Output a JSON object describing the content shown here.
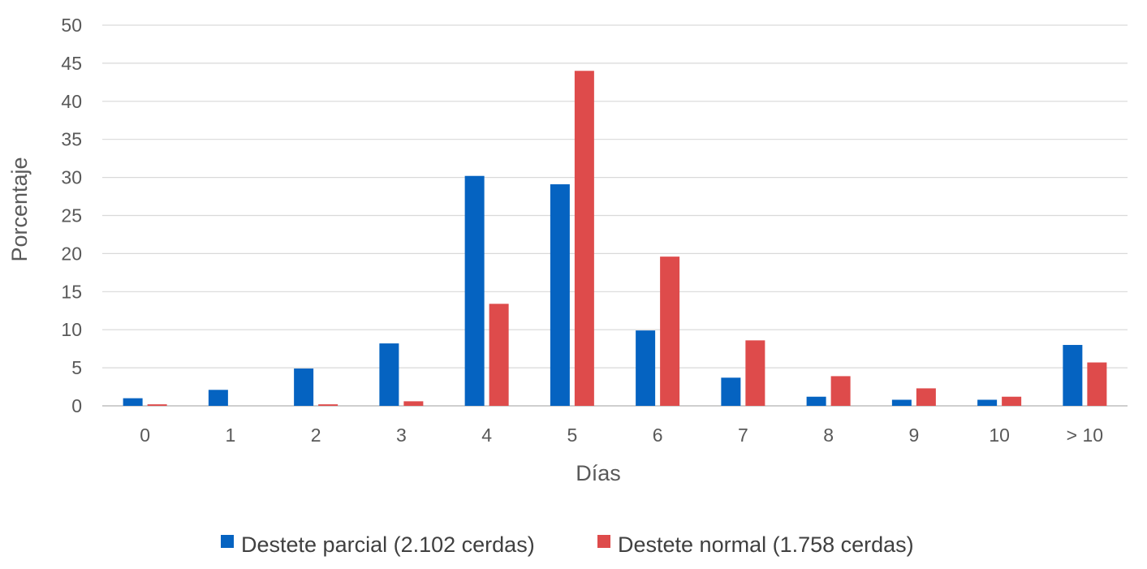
{
  "chart_data": {
    "type": "bar",
    "categories": [
      "0",
      "1",
      "2",
      "3",
      "4",
      "5",
      "6",
      "7",
      "8",
      "9",
      "10",
      "> 10"
    ],
    "series": [
      {
        "name": "Destete parcial (2.102 cerdas)",
        "color": "#0563C1",
        "values": [
          1.0,
          2.1,
          4.9,
          8.2,
          30.2,
          29.1,
          9.9,
          3.7,
          1.2,
          0.8,
          0.8,
          8.0
        ]
      },
      {
        "name": "Destete normal (1.758 cerdas)",
        "color": "#DE4B4B",
        "values": [
          0.2,
          0.0,
          0.2,
          0.6,
          13.4,
          44.0,
          19.6,
          8.6,
          3.9,
          2.3,
          1.2,
          5.7
        ]
      }
    ],
    "xlabel": "Días",
    "ylabel": "Porcentaje",
    "ylim": [
      0,
      50
    ],
    "yticks": [
      0,
      5,
      10,
      15,
      20,
      25,
      30,
      35,
      40,
      45,
      50
    ],
    "grid": true,
    "legend_position": "bottom"
  }
}
